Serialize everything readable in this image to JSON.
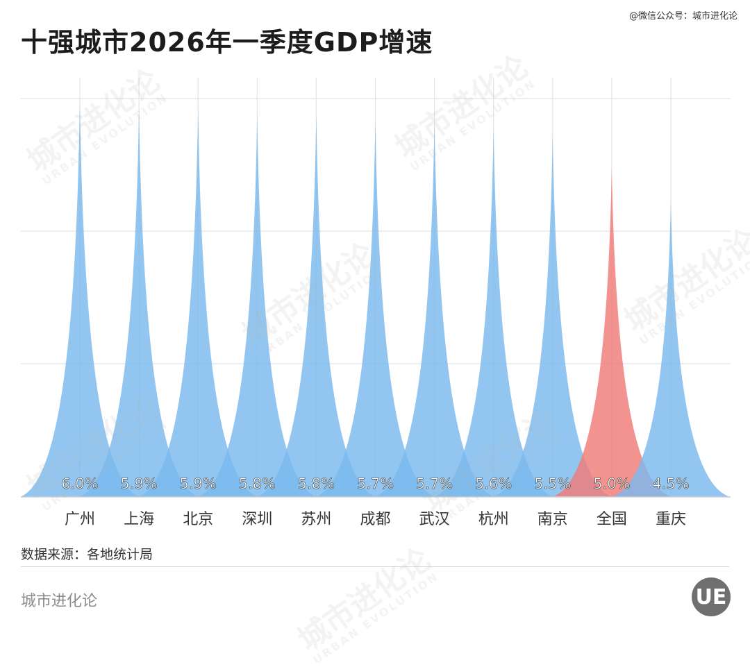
{
  "title": "十强城市2026年一季度GDP增速",
  "credit": "@微信公众号：城市进化论",
  "source": "数据来源：各地统计局",
  "brand": "城市进化论",
  "logo_text": "UE",
  "watermark": {
    "text": "城市进化论",
    "sub": "URBAN EVOLUTION"
  },
  "colors": {
    "city": "#7ab9ee",
    "national": "#f07b78",
    "grid": "#e3e3e3",
    "axis": "#cfcfcf"
  },
  "chart_data": {
    "type": "area",
    "categories": [
      "广州",
      "上海",
      "北京",
      "深圳",
      "苏州",
      "成都",
      "武汉",
      "杭州",
      "南京",
      "全国",
      "重庆"
    ],
    "values": [
      6.0,
      5.9,
      5.9,
      5.8,
      5.8,
      5.7,
      5.7,
      5.6,
      5.5,
      5.0,
      4.5
    ],
    "labels": [
      "6.0%",
      "5.9%",
      "5.9%",
      "5.8%",
      "5.8%",
      "5.7%",
      "5.7%",
      "5.6%",
      "5.5%",
      "5.0%",
      "4.5%"
    ],
    "highlight": "全国",
    "unit": "%",
    "ylim": [
      0,
      6.2
    ],
    "grid": true,
    "legend": "none"
  }
}
